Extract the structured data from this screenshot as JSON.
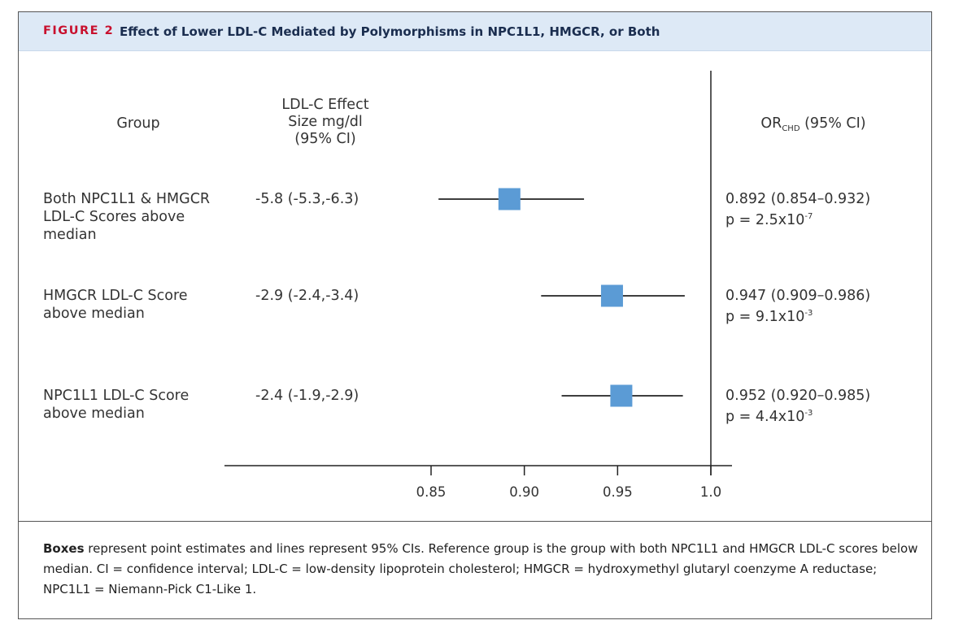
{
  "header": {
    "figure_label": "FIGURE 2",
    "title": "Effect of Lower LDL-C Mediated by Polymorphisms in NPC1L1, HMGCR, or Both"
  },
  "columns": {
    "group": "Group",
    "effect_line1": "LDL-C Effect",
    "effect_line2": "Size mg/dl",
    "effect_line3": "(95% CI)",
    "or_main": "OR",
    "or_sub": "CHD",
    "or_rest": "(95% CI)"
  },
  "rows": [
    {
      "label_lines": [
        "Both NPC1L1 & HMGCR",
        "LDL-C Scores above",
        "median"
      ],
      "effect": "-5.8 (-5.3,-6.3)",
      "or_text": "0.892 (0.854–0.932)",
      "p_base": "p = 2.5x10",
      "p_exp": "-7"
    },
    {
      "label_lines": [
        "HMGCR LDL-C Score",
        "above median"
      ],
      "effect": "-2.9 (-2.4,-3.4)",
      "or_text": "0.947 (0.909–0.986)",
      "p_base": "p = 9.1x10",
      "p_exp": "-3"
    },
    {
      "label_lines": [
        "NPC1L1 LDL-C Score",
        "above median"
      ],
      "effect": "-2.4 (-1.9,-2.9)",
      "or_text": "0.952 (0.920–0.985)",
      "p_base": "p = 4.4x10",
      "p_exp": "-3"
    }
  ],
  "caption": {
    "bold_lead": "Boxes",
    "text": " represent point estimates and lines represent 95% CIs. Reference group is the group with both NPC1L1 and HMGCR LDL-C scores below median. CI = confidence interval; LDL-C = low-density lipoprotein cholesterol; HMGCR = hydroxymethyl glutaryl coenzyme A reductase; NPC1L1 = Niemann-Pick C1-Like 1."
  },
  "chart_data": {
    "type": "forest",
    "x_ticks": [
      0.85,
      0.9,
      0.95,
      1.0
    ],
    "x_tick_labels": [
      "0.85",
      "0.90",
      "0.95",
      "1.0"
    ],
    "reference_line": 1.0,
    "points": [
      {
        "estimate": 0.892,
        "lower": 0.854,
        "upper": 0.932
      },
      {
        "estimate": 0.947,
        "lower": 0.909,
        "upper": 0.986
      },
      {
        "estimate": 0.952,
        "lower": 0.92,
        "upper": 0.985
      }
    ],
    "marker_color": "#5b9bd5",
    "line_color": "#222222"
  }
}
